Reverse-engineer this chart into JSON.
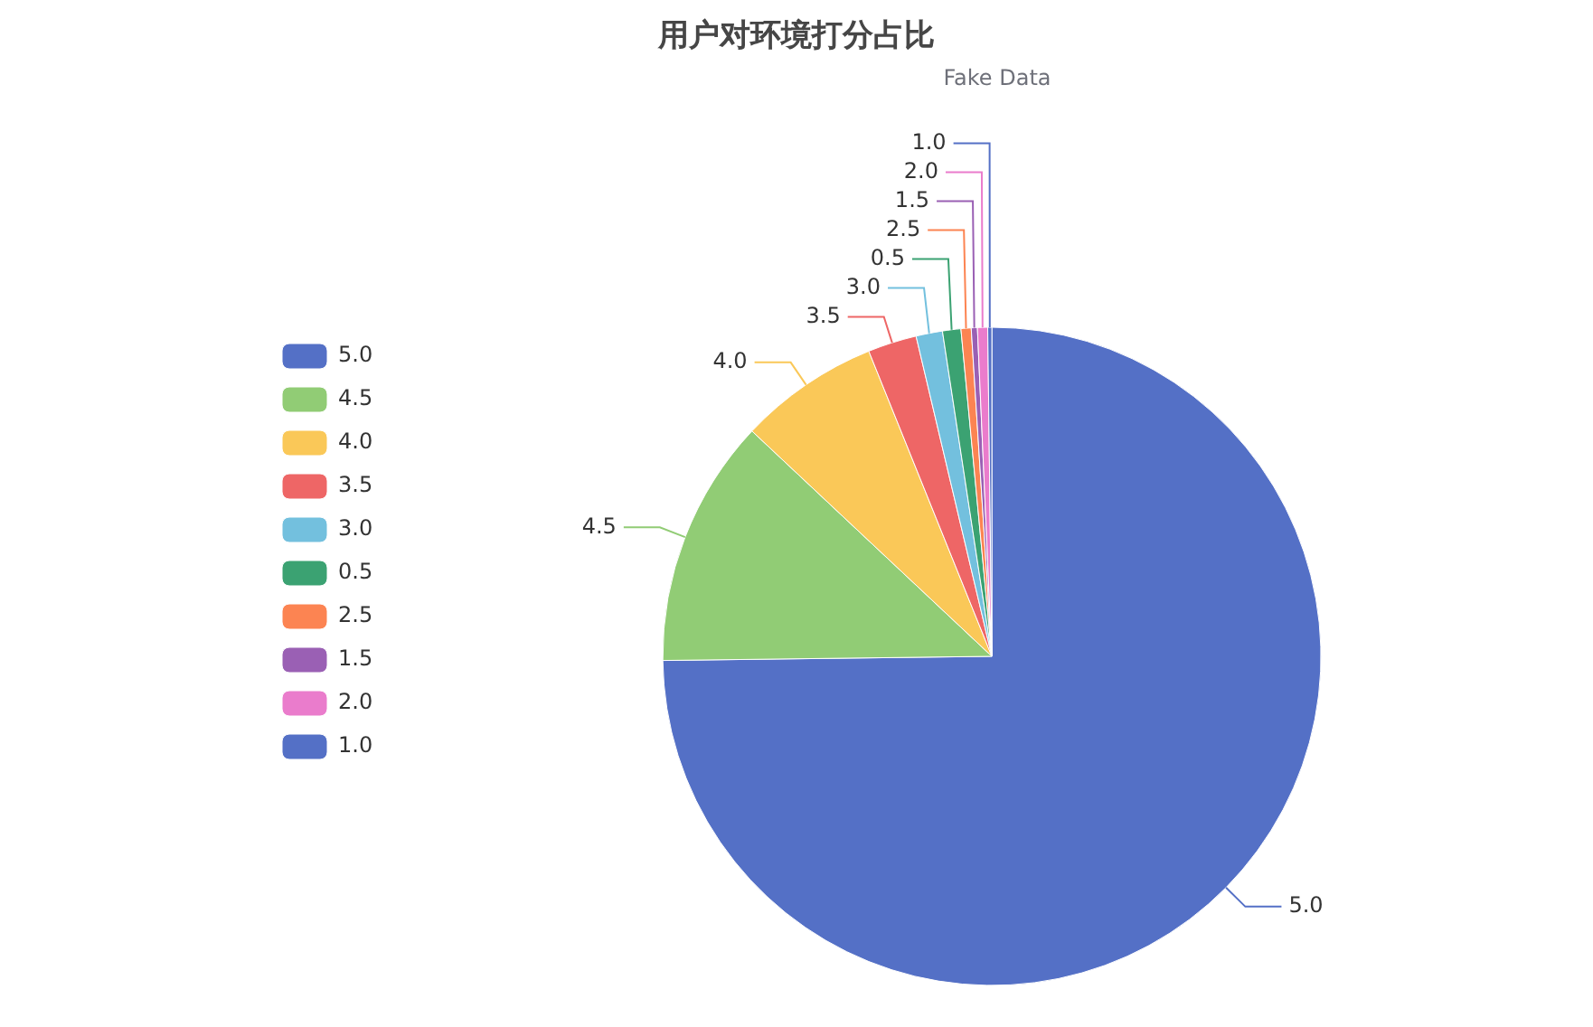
{
  "chart_data": {
    "type": "pie",
    "title": "用户对环境打分占比",
    "subtitle": "Fake Data",
    "categories": [
      "5.0",
      "4.5",
      "4.0",
      "3.5",
      "3.0",
      "0.5",
      "2.5",
      "1.5",
      "2.0",
      "1.0"
    ],
    "values": [
      74.8,
      12.2,
      6.9,
      2.4,
      1.3,
      0.9,
      0.5,
      0.3,
      0.5,
      0.2
    ],
    "colors": [
      "#5470c6",
      "#91cc75",
      "#fac858",
      "#ee6666",
      "#73c0de",
      "#3ba272",
      "#fc8452",
      "#9a60b4",
      "#ea7ccc",
      "#5470c6"
    ],
    "legend": "top left"
  }
}
